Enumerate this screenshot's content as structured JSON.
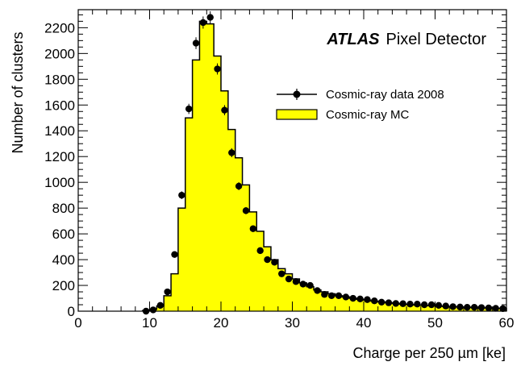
{
  "chart_data": {
    "type": "bar",
    "annotation": {
      "experiment": "ATLAS",
      "detector": "Pixel Detector"
    },
    "xlabel": "Charge per 250 µm [ke]",
    "ylabel": "Number of clusters",
    "xlim": [
      0,
      60
    ],
    "ylim": [
      0,
      2340
    ],
    "xticks": [
      0,
      10,
      20,
      30,
      40,
      50,
      60
    ],
    "yticks": [
      0,
      200,
      400,
      600,
      800,
      1000,
      1200,
      1400,
      1600,
      1800,
      2000,
      2200
    ],
    "bin_width": 1,
    "legend_position": "top-right",
    "colors": {
      "mc_fill": "#ffff00",
      "line": "#000000"
    },
    "series": [
      {
        "name": "Cosmic-ray data 2008",
        "style": "points",
        "x": [
          9.5,
          10.5,
          11.5,
          12.5,
          13.5,
          14.5,
          15.5,
          16.5,
          17.5,
          18.5,
          19.5,
          20.5,
          21.5,
          22.5,
          23.5,
          24.5,
          25.5,
          26.5,
          27.5,
          28.5,
          29.5,
          30.5,
          31.5,
          32.5,
          33.5,
          34.5,
          35.5,
          36.5,
          37.5,
          38.5,
          39.5,
          40.5,
          41.5,
          42.5,
          43.5,
          44.5,
          45.5,
          46.5,
          47.5,
          48.5,
          49.5,
          50.5,
          51.5,
          52.5,
          53.5,
          54.5,
          55.5,
          56.5,
          57.5,
          58.5,
          59.5
        ],
        "values": [
          0,
          10,
          45,
          150,
          440,
          900,
          1570,
          2080,
          2240,
          2280,
          1880,
          1560,
          1230,
          970,
          780,
          640,
          470,
          400,
          380,
          290,
          250,
          230,
          210,
          200,
          160,
          130,
          120,
          120,
          110,
          100,
          95,
          90,
          80,
          70,
          65,
          60,
          58,
          55,
          55,
          50,
          50,
          45,
          40,
          35,
          32,
          30,
          30,
          28,
          25,
          22,
          20
        ]
      },
      {
        "name": "Cosmic-ray MC",
        "style": "filled-histogram",
        "x": [
          9.5,
          10.5,
          11.5,
          12.5,
          13.5,
          14.5,
          15.5,
          16.5,
          17.5,
          18.5,
          19.5,
          20.5,
          21.5,
          22.5,
          23.5,
          24.5,
          25.5,
          26.5,
          27.5,
          28.5,
          29.5,
          30.5,
          31.5,
          32.5,
          33.5,
          34.5,
          35.5,
          36.5,
          37.5,
          38.5,
          39.5,
          40.5,
          41.5,
          42.5,
          43.5,
          44.5,
          45.5,
          46.5,
          47.5,
          48.5,
          49.5,
          50.5,
          51.5,
          52.5,
          53.5,
          54.5,
          55.5,
          56.5,
          57.5,
          58.5,
          59.5
        ],
        "values": [
          5,
          15,
          40,
          120,
          290,
          800,
          1500,
          1950,
          2250,
          2230,
          1980,
          1710,
          1410,
          1190,
          980,
          770,
          620,
          500,
          400,
          330,
          290,
          250,
          220,
          190,
          165,
          150,
          135,
          120,
          110,
          100,
          92,
          85,
          78,
          72,
          66,
          60,
          55,
          52,
          48,
          45,
          42,
          40,
          37,
          35,
          33,
          31,
          29,
          27,
          25,
          23,
          21
        ]
      }
    ]
  }
}
